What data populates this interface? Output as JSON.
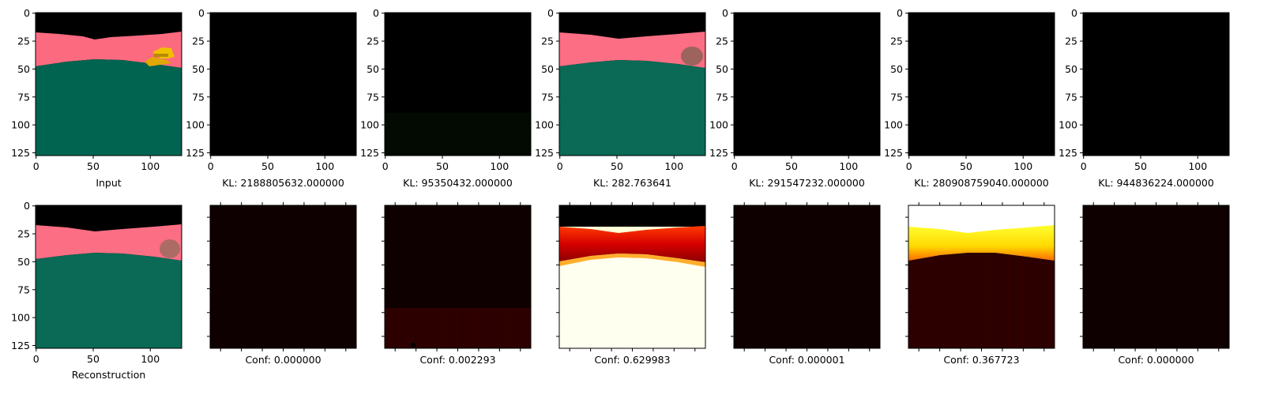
{
  "figure": {
    "top_row": {
      "tick_labels_y": [
        "0",
        "25",
        "50",
        "75",
        "100",
        "125"
      ],
      "tick_labels_x": [
        "0",
        "50",
        "100"
      ],
      "panels": [
        {
          "type": "image",
          "content": "input-frame",
          "caption": "Input"
        },
        {
          "type": "image",
          "content": "black",
          "caption": "KL: 2188805632.000000"
        },
        {
          "type": "image",
          "content": "black-faint-green-bottom",
          "caption": "KL: 95350432.000000"
        },
        {
          "type": "image",
          "content": "reconstructed-frame",
          "caption": "KL: 282.763641"
        },
        {
          "type": "image",
          "content": "black",
          "caption": "KL: 291547232.000000"
        },
        {
          "type": "image",
          "content": "black",
          "caption": "KL: 280908759040.000000"
        },
        {
          "type": "image",
          "content": "black",
          "caption": "KL: 944836224.000000"
        }
      ]
    },
    "bottom_row": {
      "panels": [
        {
          "type": "image",
          "content": "reconstruction-frame",
          "caption": "Reconstruction"
        },
        {
          "type": "heatmap",
          "colormap": "hot",
          "content": "near-zero",
          "caption": "Conf: 0.000000"
        },
        {
          "type": "heatmap",
          "colormap": "hot",
          "content": "dark-red-bottom",
          "caption": "Conf: 0.002293"
        },
        {
          "type": "heatmap",
          "colormap": "hot",
          "content": "high-lower-region",
          "caption": "Conf: 0.629983"
        },
        {
          "type": "heatmap",
          "colormap": "hot",
          "content": "near-zero",
          "caption": "Conf: 0.000001"
        },
        {
          "type": "heatmap",
          "colormap": "hot",
          "content": "bright-sky-band",
          "caption": "Conf: 0.367723"
        },
        {
          "type": "heatmap",
          "colormap": "hot",
          "content": "near-zero",
          "caption": "Conf: 0.000000"
        }
      ]
    },
    "colors": {
      "sky": "#000000",
      "pink_band": "#fc6a80",
      "ground": "#006450",
      "object_yellow": "#e6b800",
      "hot_dark": "#0f0000",
      "hot_red": "#b50000",
      "hot_white": "#ffffd8"
    }
  }
}
